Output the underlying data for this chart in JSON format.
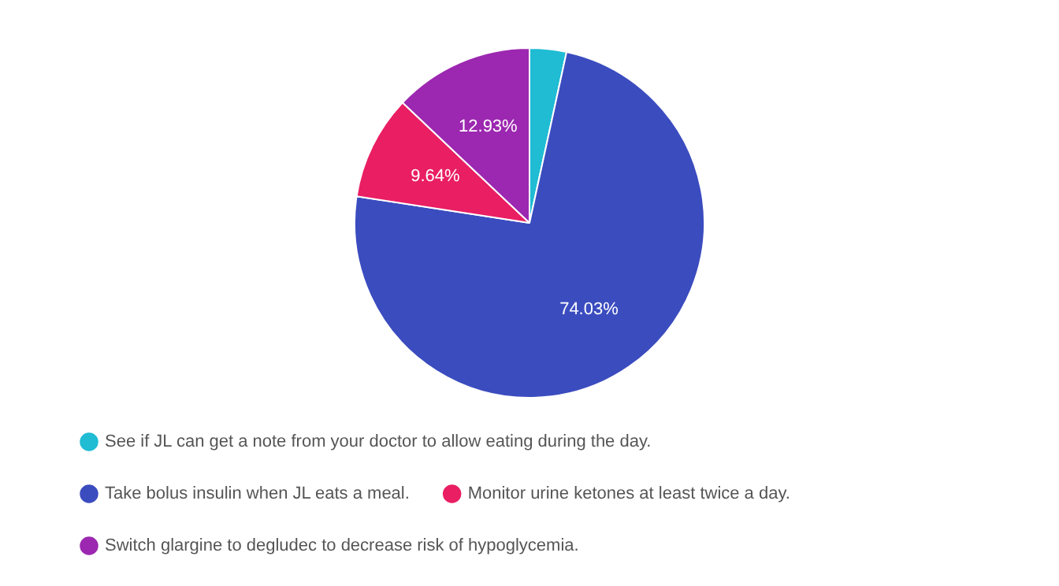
{
  "chart_data": {
    "type": "pie",
    "categories": [
      "See if JL can get a note from your doctor to allow eating during the day.",
      "Take bolus insulin when JL eats a meal.",
      "Monitor urine ketones at least twice a day.",
      "Switch glargine to degludec to decrease risk of hypoglycemia."
    ],
    "values": [
      3.4,
      74.03,
      9.64,
      12.93
    ],
    "colors": [
      "#1fbcd4",
      "#3b4cbf",
      "#e91e63",
      "#9c27b0"
    ],
    "value_labels": [
      null,
      "74.03%",
      "9.64%",
      "12.93%"
    ],
    "legend": "bottom"
  }
}
